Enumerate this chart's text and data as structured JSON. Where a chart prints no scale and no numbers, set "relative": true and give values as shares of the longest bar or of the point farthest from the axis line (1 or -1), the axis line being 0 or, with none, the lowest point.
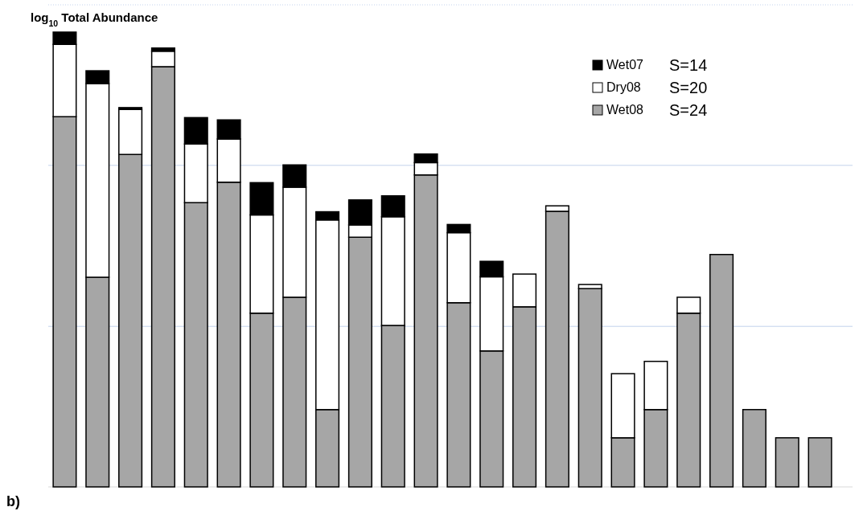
{
  "chart_data": {
    "type": "bar",
    "stacked": true,
    "relative": true,
    "legend": "top right",
    "ref_lines": [
      {
        "axis": "y",
        "value": 0.353,
        "color": "#b4c7e7"
      },
      {
        "axis": "y",
        "value": 0.707,
        "color": "#b4c7e7"
      },
      {
        "axis": "y",
        "value": 1.06,
        "color": "#b4c7e7",
        "line_style": "dotted"
      }
    ],
    "ylabel": "log$_{10}$ Total Abundance",
    "annotations": [
      "S=24",
      "S=20",
      "S=14",
      "b)"
    ],
    "categories": [
      null,
      null,
      null,
      null,
      null,
      null,
      null,
      null,
      null,
      null,
      null,
      null,
      null,
      null,
      null,
      null,
      null,
      null,
      null,
      null,
      null,
      null,
      null,
      null
    ],
    "series": [
      {
        "name": "Wet08",
        "color": "#a6a6a6",
        "values": [
          0.814,
          0.461,
          0.731,
          0.924,
          0.625,
          0.67,
          0.382,
          0.417,
          0.17,
          0.549,
          0.355,
          0.686,
          0.405,
          0.299,
          0.396,
          0.606,
          0.436,
          0.108,
          0.17,
          0.382,
          0.511,
          0.17,
          0.108,
          0.108
        ]
      },
      {
        "name": "Dry08",
        "color": "#ffffff",
        "values": [
          0.159,
          0.426,
          0.099,
          0.034,
          0.129,
          0.095,
          0.216,
          0.242,
          0.417,
          0.027,
          0.239,
          0.027,
          0.154,
          0.163,
          0.072,
          0.012,
          0.009,
          0.141,
          0.106,
          0.035,
          0,
          0,
          0,
          0
        ]
      },
      {
        "name": "Wet07",
        "color": "#000000",
        "values": [
          0.027,
          0.028,
          0.004,
          0.007,
          0.058,
          0.042,
          0.071,
          0.049,
          0.018,
          0.055,
          0.046,
          0.019,
          0.018,
          0.034,
          0,
          0,
          0,
          0,
          0,
          0,
          0,
          0,
          0,
          0
        ]
      }
    ]
  }
}
